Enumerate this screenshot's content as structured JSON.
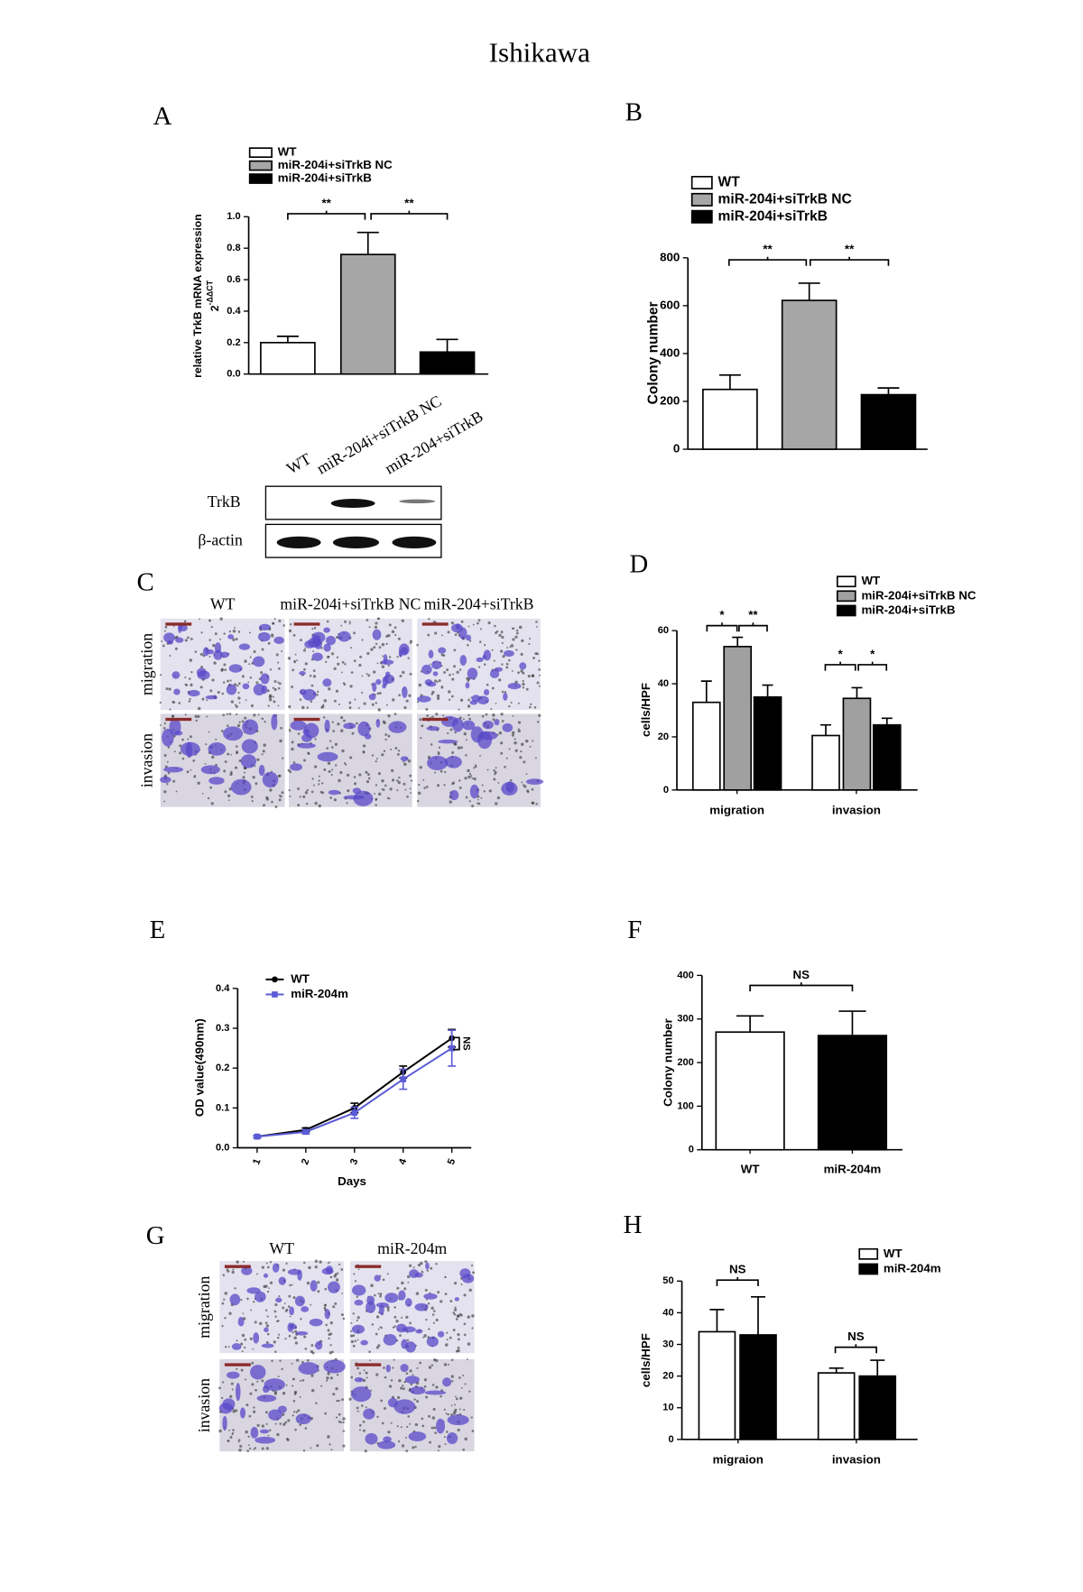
{
  "title": "Ishikawa",
  "panel_labels": [
    "A",
    "B",
    "C",
    "D",
    "E",
    "F",
    "G",
    "H"
  ],
  "blot": {
    "lanes": [
      "WT",
      "miR-204i+siTrkB NC",
      "miR-204+siTrkB"
    ],
    "rows": [
      "TrkB",
      "β-actin"
    ]
  },
  "micrographs": [
    {
      "columns": [
        "WT",
        "miR-204i+siTrkB NC",
        "miR-204+siTrkB"
      ],
      "rows": [
        "migration",
        "invasion"
      ]
    },
    {
      "columns": [
        "WT",
        "miR-204m"
      ],
      "rows": [
        "migration",
        "invasion"
      ]
    }
  ],
  "chart_data": [
    {
      "type": "bar",
      "ylabel": "relative TrkB mRNA expression",
      "y_unit": "2",
      "y_unit_exponent": "-ΔΔCT",
      "series": [
        {
          "name": "WT",
          "color": "#ffffff",
          "values": [
            0.2
          ],
          "errors": [
            0.04
          ]
        },
        {
          "name": "miR-204i+siTrkB NC",
          "color": "#a6a6a6",
          "values": [
            0.76
          ],
          "errors": [
            0.14
          ]
        },
        {
          "name": "miR-204i+siTrkB",
          "color": "#000000",
          "values": [
            0.14
          ],
          "errors": [
            0.08
          ]
        }
      ],
      "ylim": [
        0,
        1
      ],
      "yticks": [
        {
          "value": 0,
          "label": "0.0"
        },
        0.2,
        0.4,
        0.6,
        0.8,
        {
          "value": 1,
          "label": "1.0"
        }
      ],
      "annotations": [
        "**",
        "**"
      ]
    },
    {
      "type": "bar",
      "ylabel": "Colony number",
      "series": [
        {
          "name": "WT",
          "color": "#ffffff",
          "values": [
            250
          ],
          "errors": [
            60
          ]
        },
        {
          "name": "miR-204i+siTrkB NC",
          "color": "#a6a6a6",
          "values": [
            622
          ],
          "errors": [
            72
          ]
        },
        {
          "name": "miR-204i+siTrkB",
          "color": "#000000",
          "values": [
            228
          ],
          "errors": [
            28
          ]
        }
      ],
      "ylim": [
        0,
        800
      ],
      "yticks": [
        0,
        200,
        400,
        600,
        800
      ],
      "annotations": [
        "**",
        "**"
      ]
    },
    {
      "type": "bar",
      "ylabel": "cells/HPF",
      "categories": [
        "migration",
        "invasion"
      ],
      "series": [
        {
          "name": "WT",
          "color": "#ffffff",
          "values": [
            33,
            20.5
          ],
          "errors": [
            8,
            4
          ]
        },
        {
          "name": "miR-204i+siTrkB NC",
          "color": "#a0a0a0",
          "values": [
            54,
            34.5
          ],
          "errors": [
            3.5,
            4
          ]
        },
        {
          "name": "miR-204i+siTrkB",
          "color": "#000000",
          "values": [
            35,
            24.5
          ],
          "errors": [
            4.5,
            2.5
          ]
        }
      ],
      "ylim": [
        0,
        60
      ],
      "yticks": [
        0,
        20,
        40,
        60
      ],
      "annotations": [
        "*",
        "**",
        "*",
        "*"
      ]
    },
    {
      "type": "line",
      "ylabel": "OD value(490nm)",
      "xlabel": "Days",
      "x": [
        1,
        2,
        3,
        4,
        5
      ],
      "xlim": [
        0.6,
        5.4
      ],
      "xticks": [
        1,
        2,
        3,
        4,
        5
      ],
      "series": [
        {
          "name": "WT",
          "color": "#000000",
          "marker": "circle",
          "values": [
            0.028,
            0.045,
            0.1,
            0.19,
            0.275
          ],
          "errors": [
            0.003,
            0.005,
            0.012,
            0.015,
            0.022
          ]
        },
        {
          "name": "miR-204m",
          "color": "#5b5bd6",
          "marker": "square",
          "values": [
            0.028,
            0.04,
            0.088,
            0.172,
            0.25
          ],
          "errors": [
            0.003,
            0.005,
            0.014,
            0.025,
            0.045
          ]
        }
      ],
      "ylim": [
        0,
        0.4
      ],
      "yticks": [
        {
          "value": 0,
          "label": "0.0"
        },
        0.1,
        0.2,
        0.3,
        0.4
      ],
      "annotations": [
        "NS"
      ]
    },
    {
      "type": "bar",
      "ylabel": "Colony number",
      "categories": [
        "WT",
        "miR-204m"
      ],
      "values": [
        270,
        262
      ],
      "errors": [
        37,
        56
      ],
      "colors": [
        "#ffffff",
        "#000000"
      ],
      "ylim": [
        0,
        400
      ],
      "yticks": [
        0,
        100,
        200,
        300,
        400
      ],
      "annotations": [
        "NS"
      ]
    },
    {
      "type": "bar",
      "ylabel": "cells/HPF",
      "categories": [
        "migraion",
        "invasion"
      ],
      "series": [
        {
          "name": "WT",
          "color": "#ffffff",
          "values": [
            34,
            21
          ],
          "errors": [
            7,
            1.5
          ]
        },
        {
          "name": "miR-204m",
          "color": "#000000",
          "values": [
            33,
            20
          ],
          "errors": [
            12,
            5
          ]
        }
      ],
      "ylim": [
        0,
        50
      ],
      "yticks": [
        0,
        10,
        20,
        30,
        40,
        50
      ],
      "annotations": [
        "NS",
        "NS"
      ]
    }
  ]
}
